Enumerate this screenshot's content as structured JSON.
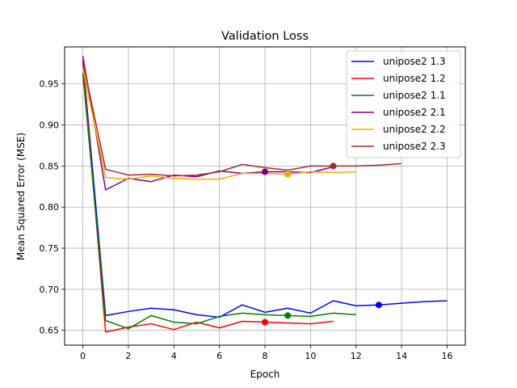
{
  "chart_data": {
    "type": "line",
    "title": "Validation Loss",
    "xlabel": "Epoch",
    "ylabel": "Mean Squared Error (MSE)",
    "xlim": [
      -0.8,
      16.8
    ],
    "ylim": [
      0.632,
      0.995
    ],
    "xticks": [
      0,
      2,
      4,
      6,
      8,
      10,
      12,
      14,
      16
    ],
    "yticks": [
      0.65,
      0.7,
      0.75,
      0.8,
      0.85,
      0.9,
      0.95
    ],
    "grid": true,
    "legend_position": "top-right",
    "series": [
      {
        "name": "unipose2 1.3",
        "color": "#0000ff",
        "x": [
          0,
          1,
          2,
          3,
          4,
          5,
          6,
          7,
          8,
          9,
          10,
          11,
          12,
          13,
          14,
          15,
          16
        ],
        "y": [
          0.979,
          0.668,
          0.673,
          0.677,
          0.675,
          0.669,
          0.666,
          0.681,
          0.672,
          0.677,
          0.671,
          0.686,
          0.68,
          0.681,
          0.683,
          0.685,
          0.686
        ],
        "best": [
          13,
          0.681
        ]
      },
      {
        "name": "unipose2 1.2",
        "color": "#ff0000",
        "x": [
          0,
          1,
          2,
          3,
          4,
          5,
          6,
          7,
          8,
          9,
          10,
          11
        ],
        "y": [
          0.977,
          0.648,
          0.654,
          0.658,
          0.651,
          0.66,
          0.653,
          0.661,
          0.66,
          0.659,
          0.658,
          0.661
        ],
        "best": [
          8,
          0.66
        ]
      },
      {
        "name": "unipose2 1.1",
        "color": "#008000",
        "x": [
          0,
          1,
          2,
          3,
          4,
          5,
          6,
          7,
          8,
          9,
          10,
          11,
          12
        ],
        "y": [
          0.963,
          0.662,
          0.652,
          0.668,
          0.66,
          0.658,
          0.667,
          0.671,
          0.669,
          0.668,
          0.667,
          0.671,
          0.669
        ],
        "best": [
          9,
          0.668
        ]
      },
      {
        "name": "unipose2 2.1",
        "color": "#800080",
        "x": [
          0,
          1,
          2,
          3,
          4,
          5,
          6,
          7,
          8,
          9,
          10,
          11
        ],
        "y": [
          0.984,
          0.821,
          0.835,
          0.831,
          0.839,
          0.837,
          0.844,
          0.841,
          0.843,
          0.843,
          0.842,
          0.849
        ],
        "best": [
          8,
          0.843
        ]
      },
      {
        "name": "unipose2 2.2",
        "color": "#ffa500",
        "x": [
          0,
          1,
          2,
          3,
          4,
          5,
          6,
          7,
          8,
          9,
          10,
          11,
          12
        ],
        "y": [
          0.969,
          0.836,
          0.834,
          0.838,
          0.835,
          0.834,
          0.834,
          0.841,
          0.841,
          0.84,
          0.843,
          0.842,
          0.843
        ],
        "best": [
          9,
          0.84
        ]
      },
      {
        "name": "unipose2 2.3",
        "color": "#a52a2a",
        "x": [
          0,
          1,
          2,
          3,
          4,
          5,
          6,
          7,
          8,
          9,
          10,
          11,
          12,
          13,
          14
        ],
        "y": [
          0.977,
          0.846,
          0.839,
          0.84,
          0.838,
          0.839,
          0.843,
          0.852,
          0.848,
          0.845,
          0.85,
          0.85,
          0.85,
          0.851,
          0.853
        ],
        "best": [
          11,
          0.85
        ]
      }
    ]
  }
}
